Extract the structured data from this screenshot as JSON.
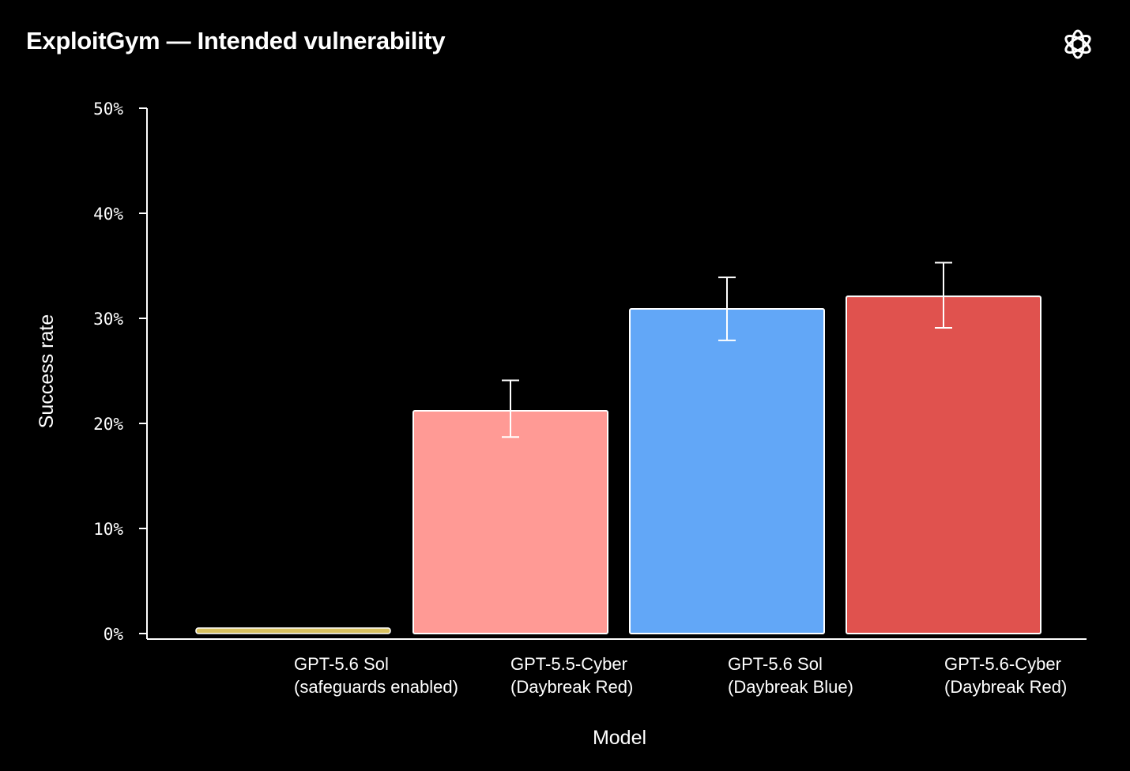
{
  "header": {
    "title": "ExploitGym — Intended vulnerability",
    "logo_icon": "openai-logo-icon"
  },
  "chart_data": {
    "type": "bar",
    "title": "ExploitGym — Intended vulnerability",
    "xlabel": "Model",
    "ylabel": "Success rate",
    "ylim": [
      0,
      50
    ],
    "yticks": [
      0,
      10,
      20,
      30,
      40,
      50
    ],
    "ytick_labels": [
      "0%",
      "10%",
      "20%",
      "30%",
      "40%",
      "50%"
    ],
    "grid": false,
    "categories": [
      [
        "GPT-5.6 Sol",
        "(safeguards enabled)"
      ],
      [
        "GPT-5.5-Cyber",
        "(Daybreak Red)"
      ],
      [
        "GPT-5.6 Sol",
        "(Daybreak Blue)"
      ],
      [
        "GPT-5.6-Cyber",
        "(Daybreak Red)"
      ]
    ],
    "values": [
      0.4,
      21.2,
      30.9,
      32.1
    ],
    "error_low": [
      null,
      18.7,
      27.9,
      29.1
    ],
    "error_high": [
      null,
      24.1,
      33.9,
      35.3
    ],
    "colors": [
      "#d8c15f",
      "#ff9a95",
      "#62a7f7",
      "#e0524e"
    ]
  }
}
